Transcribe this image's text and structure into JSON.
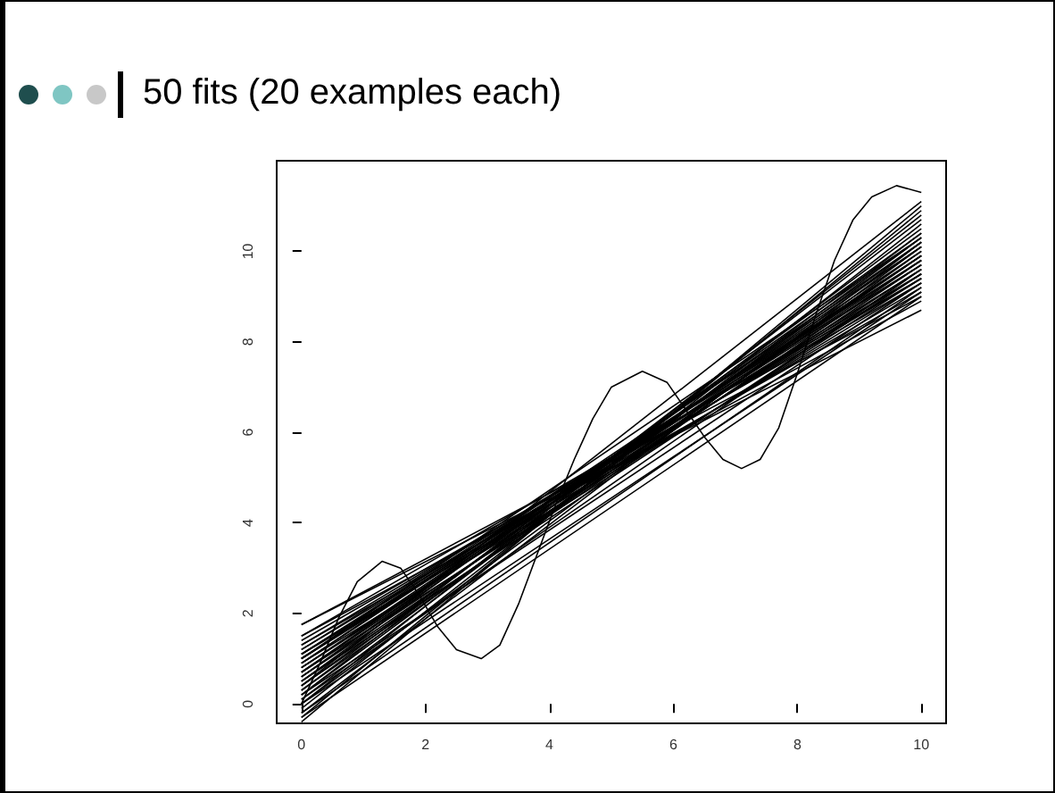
{
  "chart_data": {
    "type": "line",
    "title": "50 fits (20 examples each)",
    "x": [
      0,
      10
    ],
    "xlim": [
      -0.4,
      10.4
    ],
    "ylim": [
      -0.43,
      12
    ],
    "xticks": [
      0,
      2,
      4,
      6,
      8,
      10
    ],
    "yticks": [
      0,
      2,
      4,
      6,
      8,
      10
    ],
    "grid": false,
    "marker": "none",
    "line_style": "solid",
    "series": [
      {
        "x": [
          0,
          0.3,
          0.6,
          0.9,
          1.3,
          1.6,
          1.9,
          2.2,
          2.5,
          2.9,
          3.2,
          3.5,
          3.8,
          4.1,
          4.4,
          4.7,
          5.0,
          5.5,
          5.9,
          6.2,
          6.5,
          6.8,
          7.1,
          7.4,
          7.7,
          8.0,
          8.3,
          8.6,
          8.9,
          9.2,
          9.6,
          10
        ],
        "values": [
          0.0,
          0.9,
          1.9,
          2.7,
          3.15,
          3.0,
          2.4,
          1.7,
          1.2,
          1.0,
          1.3,
          2.2,
          3.3,
          4.4,
          5.4,
          6.3,
          7.0,
          7.35,
          7.1,
          6.5,
          5.9,
          5.4,
          5.2,
          5.4,
          6.1,
          7.3,
          8.6,
          9.8,
          10.7,
          11.2,
          11.45,
          11.3
        ],
        "color": "#000000"
      },
      {
        "values": [
          -0.4,
          11.0
        ],
        "color": "#000000"
      },
      {
        "values": [
          -0.3,
          10.9
        ],
        "color": "#000000"
      },
      {
        "values": [
          -0.2,
          10.2
        ],
        "color": "#000000"
      },
      {
        "values": [
          -0.1,
          10.6
        ],
        "color": "#000000"
      },
      {
        "values": [
          0.0,
          10.8
        ],
        "color": "#000000"
      },
      {
        "values": [
          0.0,
          10.1
        ],
        "color": "#000000"
      },
      {
        "values": [
          0.1,
          10.4
        ],
        "color": "#000000"
      },
      {
        "values": [
          0.1,
          9.6
        ],
        "color": "#000000"
      },
      {
        "values": [
          0.2,
          10.7
        ],
        "color": "#000000"
      },
      {
        "values": [
          0.2,
          10.3
        ],
        "color": "#000000"
      },
      {
        "values": [
          0.3,
          10.0
        ],
        "color": "#000000"
      },
      {
        "values": [
          0.3,
          10.5
        ],
        "color": "#000000"
      },
      {
        "values": [
          0.4,
          9.8
        ],
        "color": "#000000"
      },
      {
        "values": [
          0.4,
          10.2
        ],
        "color": "#000000"
      },
      {
        "values": [
          0.5,
          10.4
        ],
        "color": "#000000"
      },
      {
        "values": [
          0.5,
          9.9
        ],
        "color": "#000000"
      },
      {
        "values": [
          0.5,
          9.5
        ],
        "color": "#000000"
      },
      {
        "values": [
          0.6,
          10.1
        ],
        "color": "#000000"
      },
      {
        "values": [
          0.6,
          9.7
        ],
        "color": "#000000"
      },
      {
        "values": [
          0.6,
          10.3
        ],
        "color": "#000000"
      },
      {
        "values": [
          0.7,
          9.9
        ],
        "color": "#000000"
      },
      {
        "values": [
          0.7,
          9.4
        ],
        "color": "#000000"
      },
      {
        "values": [
          0.7,
          10.2
        ],
        "color": "#000000"
      },
      {
        "values": [
          0.8,
          9.8
        ],
        "color": "#000000"
      },
      {
        "values": [
          0.8,
          10.0
        ],
        "color": "#000000"
      },
      {
        "values": [
          0.8,
          9.6
        ],
        "color": "#000000"
      },
      {
        "values": [
          0.9,
          9.9
        ],
        "color": "#000000"
      },
      {
        "values": [
          0.9,
          9.3
        ],
        "color": "#000000"
      },
      {
        "values": [
          0.9,
          10.1
        ],
        "color": "#000000"
      },
      {
        "values": [
          1.0,
          9.7
        ],
        "color": "#000000"
      },
      {
        "values": [
          1.0,
          9.5
        ],
        "color": "#000000"
      },
      {
        "values": [
          1.0,
          9.9
        ],
        "color": "#000000"
      },
      {
        "values": [
          1.1,
          9.6
        ],
        "color": "#000000"
      },
      {
        "values": [
          1.1,
          9.2
        ],
        "color": "#000000"
      },
      {
        "values": [
          1.1,
          9.8
        ],
        "color": "#000000"
      },
      {
        "values": [
          1.2,
          9.4
        ],
        "color": "#000000"
      },
      {
        "values": [
          1.2,
          9.7
        ],
        "color": "#000000"
      },
      {
        "values": [
          1.3,
          9.1
        ],
        "color": "#000000"
      },
      {
        "values": [
          1.3,
          9.5
        ],
        "color": "#000000"
      },
      {
        "values": [
          1.4,
          9.3
        ],
        "color": "#000000"
      },
      {
        "values": [
          -0.3,
          9.0
        ],
        "color": "#000000"
      },
      {
        "values": [
          -0.2,
          9.2
        ],
        "color": "#000000"
      },
      {
        "values": [
          0.0,
          9.1
        ],
        "color": "#000000"
      },
      {
        "values": [
          0.2,
          9.3
        ],
        "color": "#000000"
      },
      {
        "values": [
          1.5,
          8.9
        ],
        "color": "#000000"
      },
      {
        "values": [
          1.5,
          9.4
        ],
        "color": "#000000"
      },
      {
        "values": [
          1.75,
          8.7
        ],
        "color": "#000000"
      },
      {
        "values": [
          1.75,
          9.0
        ],
        "color": "#000000"
      },
      {
        "values": [
          0.4,
          11.1
        ],
        "color": "#000000"
      },
      {
        "values": [
          1.0,
          10.3
        ],
        "color": "#000000"
      }
    ]
  }
}
